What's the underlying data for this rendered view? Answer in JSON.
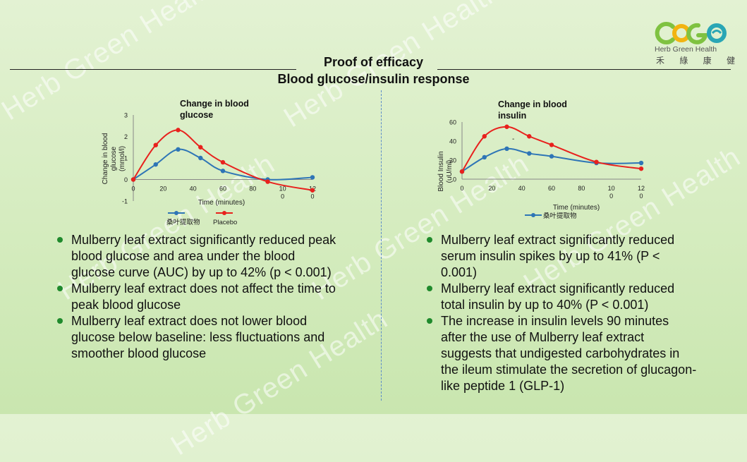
{
  "watermark_text": "Herb Green Health",
  "logo": {
    "brand_colors": [
      "#f2b411",
      "#7fc241",
      "#2aa6b5"
    ],
    "english": "Herb Green Health",
    "chinese": "禾 綠 康 健"
  },
  "header": {
    "title": "Proof of efficacy",
    "subtitle": "Blood glucose/insulin response"
  },
  "left": {
    "bullets": [
      "Mulberry leaf extract significantly reduced peak blood glucose and area under the blood glucose curve (AUC) by up to 42% (p < 0.001)",
      "Mulberry leaf extract does not affect the time to peak blood glucose",
      "Mulberry leaf extract does not lower blood glucose below baseline: less fluctuations and smoother blood glucose"
    ]
  },
  "right": {
    "bullets": [
      "Mulberry leaf extract significantly reduced serum insulin spikes by up to 41% (P < 0.001)",
      "Mulberry leaf extract significantly reduced total insulin by up to 40% (P < 0.001)",
      "The increase in insulin levels 90 minutes after the use of Mulberry leaf extract suggests that undigested carbohydrates in the ileum stimulate the secretion of glucagon-like peptide 1 (GLP-1)"
    ]
  },
  "chart_data": [
    {
      "type": "line",
      "title": "Change in blood glucose",
      "xlabel": "Time (minutes)",
      "ylabel": "Change in blood glucose (mmol/l)",
      "xlim": [
        0,
        120
      ],
      "ylim": [
        -1,
        3
      ],
      "xticks": [
        "0",
        "20",
        "40",
        "60",
        "80",
        "100",
        "120"
      ],
      "yticks": [
        "-1",
        "0",
        "1",
        "2",
        "3"
      ],
      "legend_position": "bottom",
      "series": [
        {
          "name": "桑叶提取物",
          "color": "#2e75b6",
          "x": [
            0,
            15,
            30,
            45,
            60,
            90,
            120
          ],
          "y": [
            0,
            0.7,
            1.4,
            1.0,
            0.4,
            0.0,
            0.1
          ]
        },
        {
          "name": "Placebo",
          "color": "#e8211d",
          "x": [
            0,
            15,
            30,
            45,
            60,
            90,
            120
          ],
          "y": [
            0,
            1.6,
            2.3,
            1.5,
            0.8,
            -0.1,
            -0.5
          ]
        }
      ]
    },
    {
      "type": "line",
      "title": "Change in blood insulin",
      "xlabel": "Time (minutes)",
      "ylabel": "Blood insulin (uU/ml)",
      "xlim": [
        0,
        120
      ],
      "ylim": [
        0,
        60
      ],
      "xticks": [
        "0",
        "20",
        "40",
        "60",
        "80",
        "100",
        "120"
      ],
      "yticks": [
        "0",
        "20",
        "40",
        "60"
      ],
      "legend_position": "bottom",
      "series": [
        {
          "name": "桑叶提取物",
          "color": "#2e75b6",
          "x": [
            0,
            15,
            30,
            45,
            60,
            90,
            120
          ],
          "y": [
            8,
            23,
            32,
            27,
            24,
            17,
            17
          ]
        },
        {
          "name": "",
          "color": "#e8211d",
          "x": [
            0,
            15,
            30,
            45,
            60,
            90,
            120
          ],
          "y": [
            8,
            45,
            55,
            45,
            36,
            18,
            11
          ]
        }
      ]
    }
  ]
}
